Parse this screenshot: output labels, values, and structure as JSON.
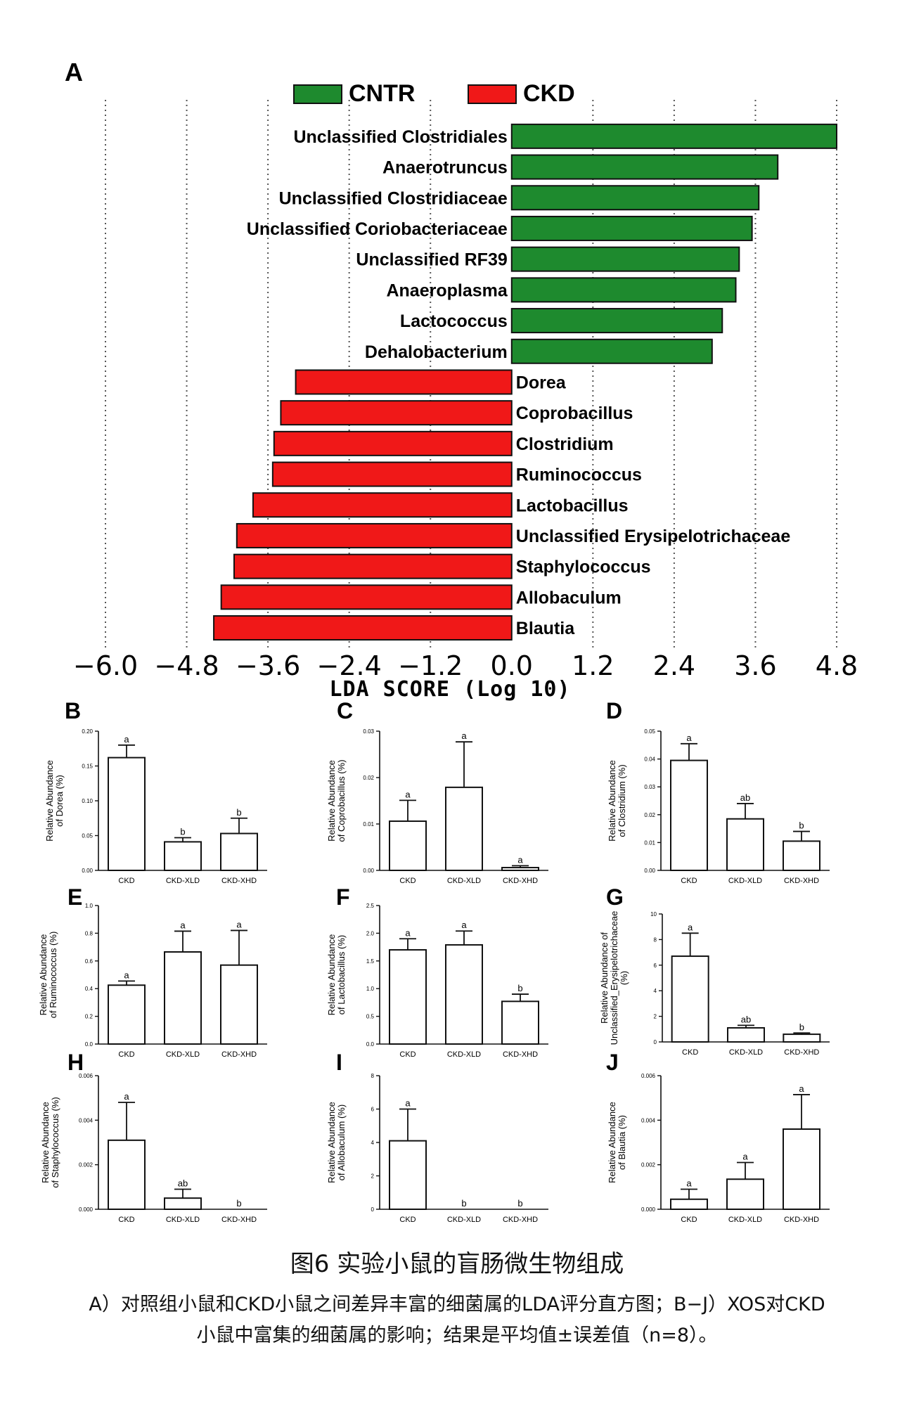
{
  "chart_data": [
    {
      "type": "bar",
      "orientation": "horizontal",
      "panel_label": "A",
      "legend": [
        {
          "name": "CNTR",
          "color": "#1e8a2e"
        },
        {
          "name": "CKD",
          "color": "#f01818"
        }
      ],
      "legend_placement": "top-center",
      "xlabel": "LDA SCORE (Log 10)",
      "xlim": [
        -6.0,
        4.8
      ],
      "xticks": [
        "−6.0",
        "−4.8",
        "−3.6",
        "−2.4",
        "−1.2",
        "0.0",
        "1.2",
        "2.4",
        "3.6",
        "4.8"
      ],
      "xtick_values": [
        -6.0,
        -4.8,
        -3.6,
        -2.4,
        -1.2,
        0.0,
        1.2,
        2.4,
        3.6,
        4.8
      ],
      "grid": "vertical-dotted",
      "bars": [
        {
          "label": "Unclassified  Clostridiales",
          "value": 4.8,
          "group": "CNTR"
        },
        {
          "label": "Anaerotruncus",
          "value": 3.93,
          "group": "CNTR"
        },
        {
          "label": "Unclassified  Clostridiaceae",
          "value": 3.65,
          "group": "CNTR"
        },
        {
          "label": "Unclassified  Coriobacteriaceae",
          "value": 3.55,
          "group": "CNTR"
        },
        {
          "label": "Unclassified  RF39",
          "value": 3.36,
          "group": "CNTR"
        },
        {
          "label": "Anaeroplasma",
          "value": 3.31,
          "group": "CNTR"
        },
        {
          "label": "Lactococcus",
          "value": 3.11,
          "group": "CNTR"
        },
        {
          "label": "Dehalobacterium",
          "value": 2.96,
          "group": "CNTR"
        },
        {
          "label": "Dorea",
          "value": -3.19,
          "group": "CKD"
        },
        {
          "label": "Coprobacillus",
          "value": -3.41,
          "group": "CKD"
        },
        {
          "label": "Clostridium",
          "value": -3.51,
          "group": "CKD"
        },
        {
          "label": "Ruminococcus",
          "value": -3.53,
          "group": "CKD"
        },
        {
          "label": "Lactobacillus",
          "value": -3.82,
          "group": "CKD"
        },
        {
          "label": "Unclassified  Erysipelotrichaceae",
          "value": -4.06,
          "group": "CKD"
        },
        {
          "label": "Staphylococcus",
          "value": -4.1,
          "group": "CKD"
        },
        {
          "label": "Allobaculum",
          "value": -4.29,
          "group": "CKD"
        },
        {
          "label": "Blautia",
          "value": -4.4,
          "group": "CKD"
        }
      ]
    },
    {
      "type": "bar",
      "panel_label": "B",
      "ylabel": [
        "Relative Abundance",
        "of Dorea (%)"
      ],
      "categories": [
        "CKD",
        "CKD-XLD",
        "CKD-XHD"
      ],
      "values": [
        0.162,
        0.041,
        0.053
      ],
      "errors": [
        0.018,
        0.006,
        0.022
      ],
      "letters": [
        "a",
        "b",
        "b"
      ],
      "ylim": [
        0,
        0.2
      ],
      "yticks": [
        "0.00",
        "0.05",
        "0.10",
        "0.15",
        "0.20"
      ]
    },
    {
      "type": "bar",
      "panel_label": "C",
      "ylabel": [
        "Relative Abundance",
        "of Coprobacillus (%)"
      ],
      "categories": [
        "CKD",
        "CKD-XLD",
        "CKD-XHD"
      ],
      "values": [
        0.0106,
        0.0179,
        0.0006
      ],
      "errors": [
        0.0045,
        0.0098,
        0.0004
      ],
      "letters": [
        "a",
        "a",
        "a"
      ],
      "ylim": [
        0,
        0.03
      ],
      "yticks": [
        "0.00",
        "0.01",
        "0.02",
        "0.03"
      ]
    },
    {
      "type": "bar",
      "panel_label": "D",
      "ylabel": [
        "Relative Abundance",
        "of Clostridium (%)"
      ],
      "categories": [
        "CKD",
        "CKD-XLD",
        "CKD-XHD"
      ],
      "values": [
        0.0395,
        0.0185,
        0.0105
      ],
      "errors": [
        0.006,
        0.0055,
        0.0035
      ],
      "letters": [
        "a",
        "ab",
        "b"
      ],
      "ylim": [
        0,
        0.05
      ],
      "yticks": [
        "0.00",
        "0.01",
        "0.02",
        "0.03",
        "0.04",
        "0.05"
      ]
    },
    {
      "type": "bar",
      "panel_label": "E",
      "ylabel": [
        "Relative Abundance",
        "of Ruminococcus (%)"
      ],
      "categories": [
        "CKD",
        "CKD-XLD",
        "CKD-XHD"
      ],
      "values": [
        0.425,
        0.665,
        0.57
      ],
      "errors": [
        0.03,
        0.15,
        0.25
      ],
      "letters": [
        "a",
        "a",
        "a"
      ],
      "ylim": [
        0,
        1.0
      ],
      "yticks": [
        "0.0",
        "0.2",
        "0.4",
        "0.6",
        "0.8",
        "1.0"
      ]
    },
    {
      "type": "bar",
      "panel_label": "F",
      "ylabel": [
        "Relative Abundance",
        "of Lactobacillus (%)"
      ],
      "categories": [
        "CKD",
        "CKD-XLD",
        "CKD-XHD"
      ],
      "values": [
        1.7,
        1.79,
        0.77
      ],
      "errors": [
        0.2,
        0.25,
        0.13
      ],
      "letters": [
        "a",
        "a",
        "b"
      ],
      "ylim": [
        0,
        2.5
      ],
      "yticks": [
        "0.0",
        "0.5",
        "1.0",
        "1.5",
        "2.0",
        "2.5"
      ]
    },
    {
      "type": "bar",
      "panel_label": "G",
      "ylabel": [
        "Relative Abundance of",
        "Unclassified_Erysipelotrichaceae",
        "(%)"
      ],
      "categories": [
        "CKD",
        "CKD-XLD",
        "CKD-XHD"
      ],
      "values": [
        6.7,
        1.1,
        0.6
      ],
      "errors": [
        1.8,
        0.2,
        0.1
      ],
      "letters": [
        "a",
        "ab",
        "b"
      ],
      "ylim": [
        0,
        10
      ],
      "yticks": [
        "0",
        "2",
        "4",
        "6",
        "8",
        "10"
      ]
    },
    {
      "type": "bar",
      "panel_label": "H",
      "ylabel": [
        "Relative Abundance",
        "of Staphylococcus (%)"
      ],
      "categories": [
        "CKD",
        "CKD-XLD",
        "CKD-XHD"
      ],
      "values": [
        0.0031,
        0.0005,
        0
      ],
      "errors": [
        0.0017,
        0.0004,
        0
      ],
      "letters": [
        "a",
        "ab",
        "b"
      ],
      "ylim": [
        0,
        0.006
      ],
      "yticks": [
        "0.000",
        "0.002",
        "0.004",
        "0.006"
      ]
    },
    {
      "type": "bar",
      "panel_label": "I",
      "ylabel": [
        "Relative Abundance",
        "of Allobaculum (%)"
      ],
      "categories": [
        "CKD",
        "CKD-XLD",
        "CKD-XHD"
      ],
      "values": [
        4.1,
        0,
        0
      ],
      "errors": [
        1.9,
        0,
        0
      ],
      "letters": [
        "a",
        "b",
        "b"
      ],
      "ylim": [
        0,
        8
      ],
      "yticks": [
        "0",
        "2",
        "4",
        "6",
        "8"
      ]
    },
    {
      "type": "bar",
      "panel_label": "J",
      "ylabel": [
        "Relative Abundance",
        "of Blautia (%)"
      ],
      "categories": [
        "CKD",
        "CKD-XLD",
        "CKD-XHD"
      ],
      "values": [
        0.00045,
        0.00135,
        0.0036
      ],
      "errors": [
        0.00045,
        0.00075,
        0.00155
      ],
      "letters": [
        "a",
        "a",
        "a"
      ],
      "ylim": [
        0,
        0.006
      ],
      "yticks": [
        "0.000",
        "0.002",
        "0.004",
        "0.006"
      ]
    }
  ],
  "caption": {
    "title": "图6 实验小鼠的盲肠微生物组成",
    "line1": "A）对照组小鼠和CKD小鼠之间差异丰富的细菌属的LDA评分直方图；B−J）XOS对CKD",
    "line2": "小鼠中富集的细菌属的影响；结果是平均值±误差值（n=8）。"
  }
}
